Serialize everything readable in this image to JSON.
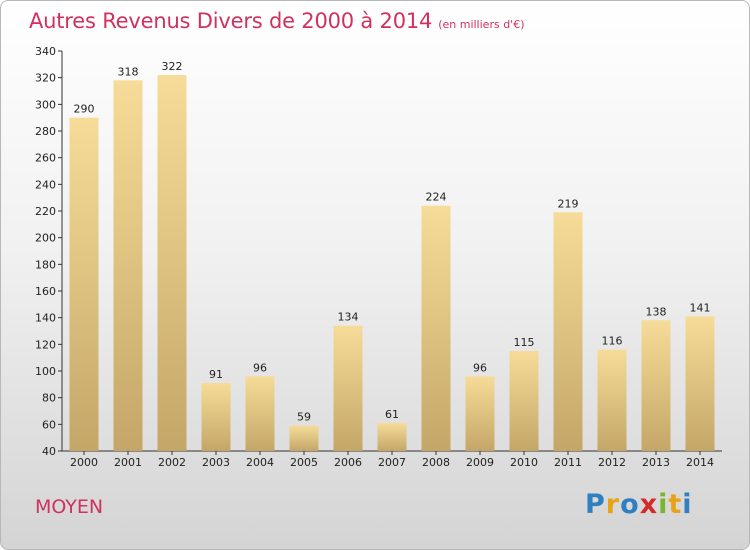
{
  "title": "Autres Revenus Divers de 2000 à 2014",
  "subtitle": "(en milliers d'€)",
  "commune": "MOYEN",
  "logo": {
    "letters": [
      "P",
      "r",
      "o",
      "x",
      "i",
      "t",
      "i"
    ],
    "colors": [
      "#2f7fc1",
      "#e8a317",
      "#2f7fc1",
      "#d42a2a",
      "#79b530",
      "#e8a317",
      "#2f7fc1"
    ]
  },
  "colors": {
    "bar_top": "#f6dc98",
    "bar_bottom": "#c4a768",
    "accent": "#d0315f"
  },
  "chart_data": {
    "type": "bar",
    "title": "Autres Revenus Divers de 2000 à 2014",
    "subtitle": "(en milliers d'€)",
    "xlabel": "",
    "ylabel": "",
    "categories": [
      "2000",
      "2001",
      "2002",
      "2003",
      "2004",
      "2005",
      "2006",
      "2007",
      "2008",
      "2009",
      "2010",
      "2011",
      "2012",
      "2013",
      "2014"
    ],
    "values": [
      290,
      318,
      322,
      91,
      96,
      59,
      134,
      61,
      224,
      96,
      115,
      219,
      116,
      138,
      141
    ],
    "ylim": [
      40,
      340
    ],
    "yticks": [
      40,
      60,
      80,
      100,
      120,
      140,
      160,
      180,
      200,
      220,
      240,
      260,
      280,
      300,
      320,
      340
    ],
    "grid": false,
    "legend": "none"
  }
}
